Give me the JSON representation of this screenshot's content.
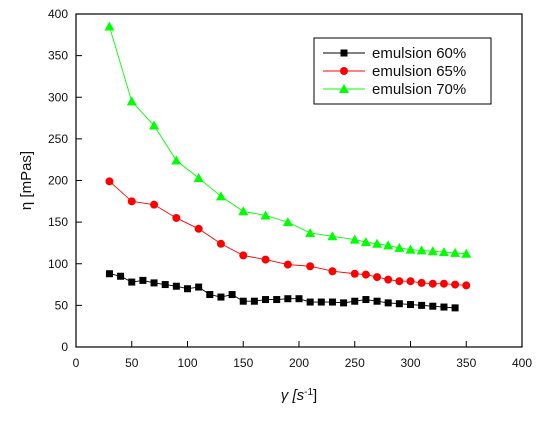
{
  "chart_data": {
    "type": "line",
    "xlabel": "γ [s",
    "xlabel_superscript": "-1",
    "xlabel_suffix": "]",
    "ylabel": "η [mPas]",
    "xlim": [
      0,
      400
    ],
    "ylim": [
      0,
      400
    ],
    "xticks": [
      0,
      50,
      100,
      150,
      200,
      250,
      300,
      350,
      400
    ],
    "yticks": [
      0,
      50,
      100,
      150,
      200,
      250,
      300,
      350,
      400
    ],
    "grid": false,
    "legend_position": "top-right",
    "series": [
      {
        "name": "emulsion 60%",
        "color": "#000000",
        "marker": "square",
        "x": [
          30,
          40,
          50,
          60,
          70,
          80,
          90,
          100,
          110,
          120,
          130,
          140,
          150,
          160,
          170,
          180,
          190,
          200,
          210,
          220,
          230,
          240,
          250,
          260,
          270,
          280,
          290,
          300,
          310,
          320,
          330,
          340
        ],
        "y": [
          88,
          85,
          78,
          80,
          77,
          75,
          73,
          70,
          72,
          63,
          60,
          63,
          55,
          55,
          57,
          57,
          58,
          58,
          54,
          54,
          54,
          53,
          55,
          57,
          55,
          53,
          52,
          51,
          50,
          49,
          48,
          47
        ]
      },
      {
        "name": "emulsion 65%",
        "color": "#ff0000",
        "marker": "circle",
        "x": [
          30,
          50,
          70,
          90,
          110,
          130,
          150,
          170,
          190,
          210,
          230,
          250,
          260,
          270,
          280,
          290,
          300,
          310,
          320,
          330,
          340,
          350
        ],
        "y": [
          199,
          175,
          171,
          155,
          142,
          124,
          110,
          105,
          99,
          97,
          91,
          88,
          87,
          84,
          81,
          79,
          79,
          77,
          76,
          76,
          75,
          74
        ]
      },
      {
        "name": "emulsion 70%",
        "color": "#00ff00",
        "marker": "triangle",
        "x": [
          30,
          50,
          70,
          90,
          110,
          130,
          150,
          170,
          190,
          210,
          230,
          250,
          260,
          270,
          280,
          290,
          300,
          310,
          320,
          330,
          340,
          350
        ],
        "y": [
          385,
          295,
          266,
          224,
          203,
          181,
          163,
          158,
          150,
          137,
          133,
          129,
          126,
          124,
          122,
          119,
          117,
          116,
          115,
          114,
          113,
          112
        ]
      }
    ]
  }
}
